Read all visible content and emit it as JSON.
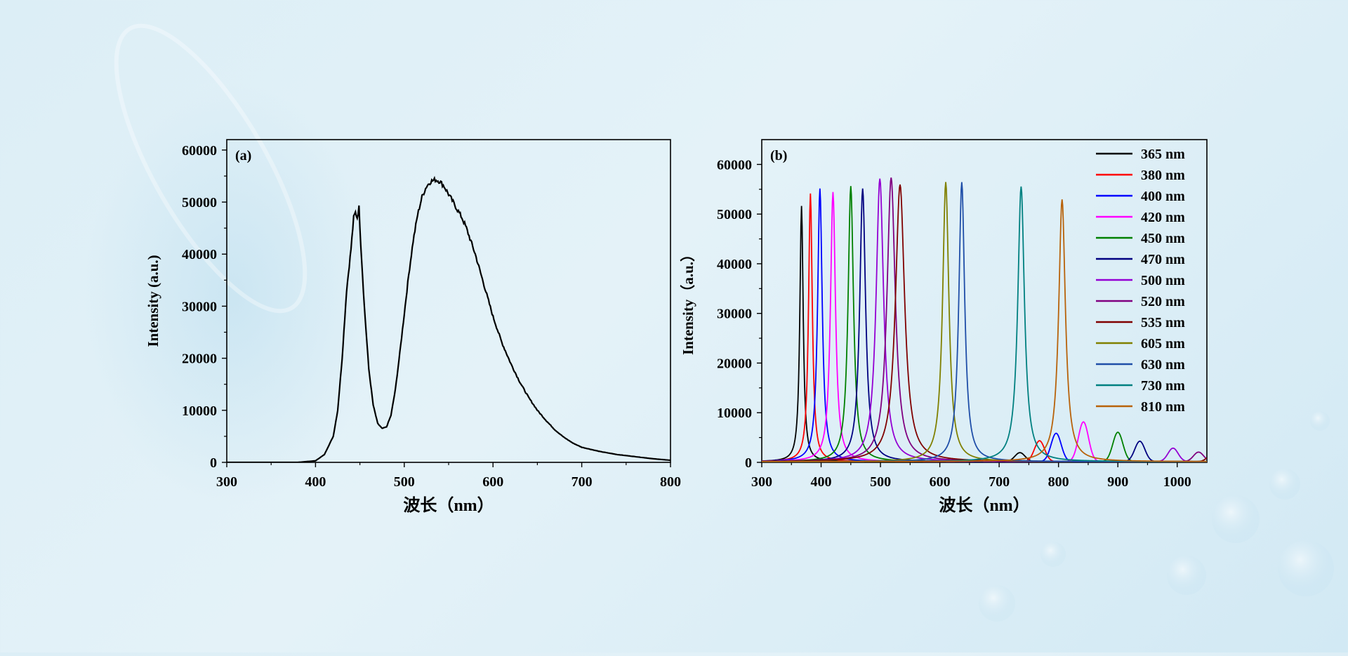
{
  "chart_data": [
    {
      "type": "line",
      "panel_label": "(a)",
      "xlabel": "波长（nm）",
      "ylabel": "Intensity (a.u.)",
      "xlim": [
        300,
        800
      ],
      "ylim": [
        0,
        62000
      ],
      "x_ticks": [
        300,
        400,
        500,
        600,
        700,
        800
      ],
      "y_ticks": [
        0,
        10000,
        20000,
        30000,
        40000,
        50000,
        60000
      ],
      "grid": false,
      "legend": "none",
      "series": [
        {
          "color": "#000000",
          "x": [
            300,
            380,
            400,
            410,
            420,
            425,
            430,
            435,
            440,
            443,
            445,
            447,
            449,
            451,
            455,
            460,
            465,
            470,
            475,
            480,
            485,
            490,
            495,
            500,
            505,
            510,
            515,
            520,
            525,
            530,
            535,
            540,
            545,
            550,
            555,
            560,
            565,
            570,
            580,
            590,
            600,
            610,
            620,
            630,
            640,
            650,
            660,
            670,
            680,
            690,
            700,
            720,
            740,
            760,
            780,
            800
          ],
          "y": [
            0,
            0,
            300,
            1500,
            5000,
            10000,
            20000,
            33000,
            41000,
            47000,
            48000,
            47000,
            49000,
            42000,
            30000,
            18000,
            11000,
            7500,
            6500,
            6800,
            9000,
            14000,
            21000,
            28500,
            36000,
            42500,
            47500,
            51000,
            53000,
            54000,
            54300,
            54000,
            53000,
            51500,
            50000,
            48500,
            47000,
            45000,
            40000,
            34000,
            28000,
            23000,
            19000,
            15500,
            12500,
            10000,
            8000,
            6200,
            4800,
            3700,
            2900,
            2100,
            1500,
            1100,
            700,
            400
          ]
        }
      ]
    },
    {
      "type": "line",
      "panel_label": "(b)",
      "xlabel": "波长（nm）",
      "ylabel": "Intensity（a.u.）",
      "xlim": [
        300,
        1050
      ],
      "ylim": [
        0,
        65000
      ],
      "x_ticks": [
        300,
        400,
        500,
        600,
        700,
        800,
        900,
        1000
      ],
      "y_ticks": [
        0,
        10000,
        20000,
        30000,
        40000,
        50000,
        60000
      ],
      "grid": false,
      "legend": "top-right",
      "series": [
        {
          "name": "365 nm",
          "color": "#000000",
          "peak_nm": 367,
          "peak_value": 51500,
          "second_peak_nm": 735,
          "second_peak_value": 1800
        },
        {
          "name": "380 nm",
          "color": "#ff0000",
          "peak_nm": 382,
          "peak_value": 54000,
          "second_peak_nm": 768,
          "second_peak_value": 4200
        },
        {
          "name": "400 nm",
          "color": "#0000ff",
          "peak_nm": 398,
          "peak_value": 55000,
          "second_peak_nm": 796,
          "second_peak_value": 5700
        },
        {
          "name": "420 nm",
          "color": "#ff00ff",
          "peak_nm": 420,
          "peak_value": 54300,
          "second_peak_nm": 842,
          "second_peak_value": 8000
        },
        {
          "name": "450 nm",
          "color": "#008000",
          "peak_nm": 450,
          "peak_value": 55500,
          "second_peak_nm": 900,
          "second_peak_value": 5900
        },
        {
          "name": "470 nm",
          "color": "#000080",
          "peak_nm": 470,
          "peak_value": 55000,
          "second_peak_nm": 937,
          "second_peak_value": 4100
        },
        {
          "name": "500 nm",
          "color": "#9400d3",
          "peak_nm": 499,
          "peak_value": 57000,
          "second_peak_nm": 993,
          "second_peak_value": 2700
        },
        {
          "name": "520 nm",
          "color": "#800080",
          "peak_nm": 518,
          "peak_value": 57200,
          "second_peak_nm": 1036,
          "second_peak_value": 1900
        },
        {
          "name": "535 nm",
          "color": "#800000",
          "peak_nm": 533,
          "peak_value": 55800,
          "second_peak_nm": 1060,
          "second_peak_value": 1500
        },
        {
          "name": "605 nm",
          "color": "#808000",
          "peak_nm": 610,
          "peak_value": 56300,
          "second_peak_nm": null,
          "second_peak_value": 0
        },
        {
          "name": "630 nm",
          "color": "#1f4ea8",
          "peak_nm": 637,
          "peak_value": 56300,
          "second_peak_nm": null,
          "second_peak_value": 0
        },
        {
          "name": "730 nm",
          "color": "#008080",
          "peak_nm": 737,
          "peak_value": 55400,
          "second_peak_nm": null,
          "second_peak_value": 0
        },
        {
          "name": "810 nm",
          "color": "#b8620a",
          "peak_nm": 806,
          "peak_value": 52800,
          "second_peak_nm": null,
          "second_peak_value": 0
        }
      ]
    }
  ]
}
